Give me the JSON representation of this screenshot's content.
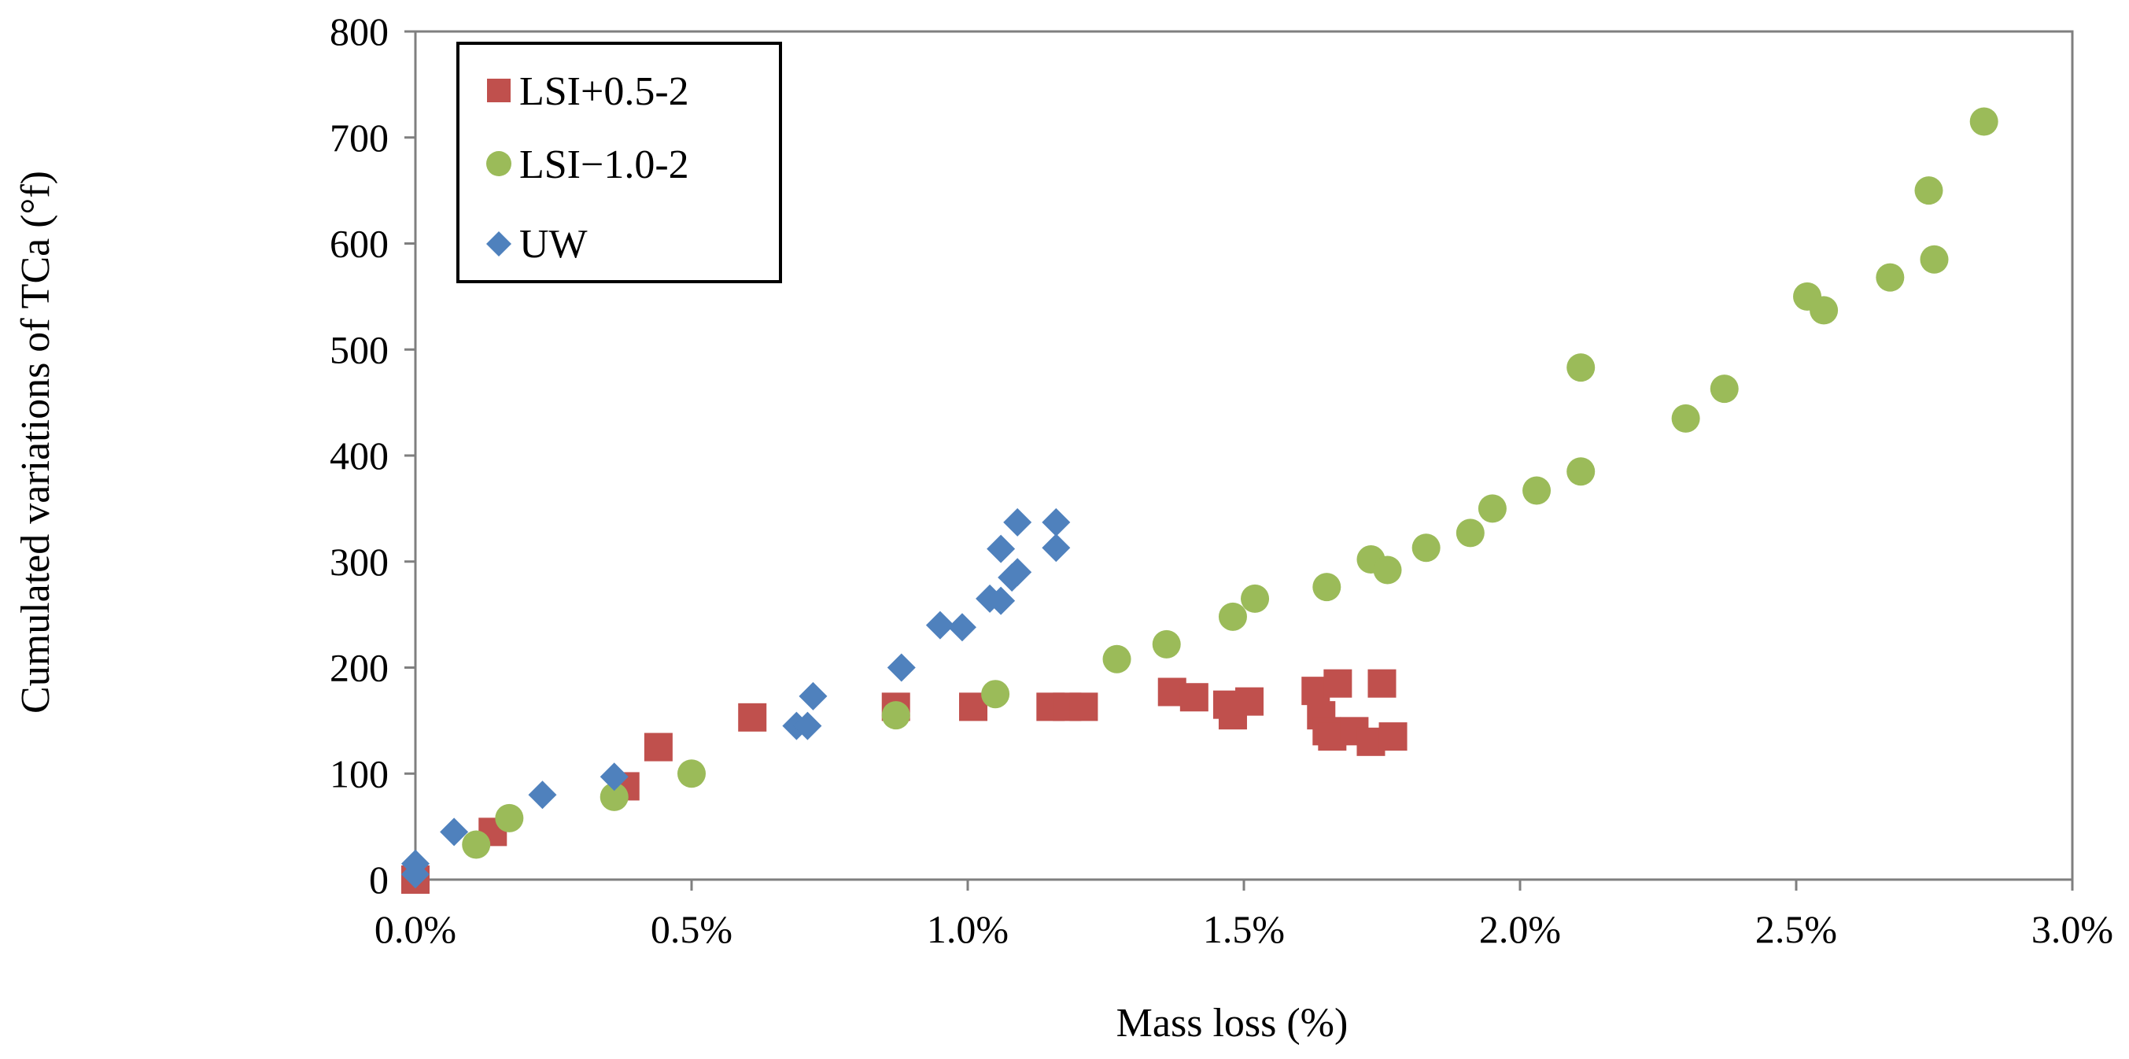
{
  "chart_data": {
    "type": "scatter",
    "title": "",
    "xlabel": "Mass loss (%)",
    "ylabel": "Cumulated  variations  of TCa (°f)",
    "xlim": [
      0.0,
      3.0
    ],
    "ylim": [
      0,
      800
    ],
    "x_ticks": [
      0.0,
      0.5,
      1.0,
      1.5,
      2.0,
      2.5,
      3.0
    ],
    "x_tick_labels": [
      "0.0%",
      "0.5%",
      "1.0%",
      "1.5%",
      "2.0%",
      "2.5%",
      "3.0%"
    ],
    "y_ticks": [
      0,
      100,
      200,
      300,
      400,
      500,
      600,
      700,
      800
    ],
    "y_tick_labels": [
      "0",
      "100",
      "200",
      "300",
      "400",
      "500",
      "600",
      "700",
      "800"
    ],
    "grid": false,
    "legend_position": "top-left",
    "series": [
      {
        "name": "LSI+0.5-2",
        "marker": "square",
        "color": "#C0504D",
        "points": [
          [
            0.0,
            0
          ],
          [
            0.14,
            45
          ],
          [
            0.38,
            88
          ],
          [
            0.44,
            125
          ],
          [
            0.61,
            153
          ],
          [
            0.87,
            163
          ],
          [
            1.01,
            163
          ],
          [
            1.15,
            163
          ],
          [
            1.18,
            163
          ],
          [
            1.21,
            163
          ],
          [
            1.37,
            177
          ],
          [
            1.41,
            172
          ],
          [
            1.47,
            165
          ],
          [
            1.48,
            155
          ],
          [
            1.51,
            168
          ],
          [
            1.63,
            178
          ],
          [
            1.64,
            155
          ],
          [
            1.65,
            140
          ],
          [
            1.66,
            135
          ],
          [
            1.67,
            185
          ],
          [
            1.7,
            140
          ],
          [
            1.73,
            130
          ],
          [
            1.75,
            185
          ],
          [
            1.77,
            135
          ]
        ]
      },
      {
        "name": "LSI−1.0-2",
        "marker": "circle",
        "color": "#9BBB59",
        "points": [
          [
            0.11,
            33
          ],
          [
            0.17,
            58
          ],
          [
            0.36,
            78
          ],
          [
            0.5,
            100
          ],
          [
            0.87,
            155
          ],
          [
            1.05,
            175
          ],
          [
            1.27,
            208
          ],
          [
            1.36,
            222
          ],
          [
            1.48,
            248
          ],
          [
            1.52,
            265
          ],
          [
            1.65,
            276
          ],
          [
            1.73,
            302
          ],
          [
            1.76,
            292
          ],
          [
            1.83,
            313
          ],
          [
            1.91,
            327
          ],
          [
            1.95,
            350
          ],
          [
            2.03,
            367
          ],
          [
            2.11,
            385
          ],
          [
            2.11,
            483
          ],
          [
            2.3,
            435
          ],
          [
            2.37,
            463
          ],
          [
            2.52,
            550
          ],
          [
            2.55,
            537
          ],
          [
            2.67,
            568
          ],
          [
            2.74,
            650
          ],
          [
            2.75,
            585
          ],
          [
            2.84,
            715
          ]
        ]
      },
      {
        "name": "UW",
        "marker": "diamond",
        "color": "#4F81BD",
        "points": [
          [
            0.0,
            5
          ],
          [
            0.0,
            15
          ],
          [
            0.07,
            45
          ],
          [
            0.23,
            80
          ],
          [
            0.36,
            97
          ],
          [
            0.69,
            145
          ],
          [
            0.71,
            145
          ],
          [
            0.72,
            173
          ],
          [
            0.88,
            200
          ],
          [
            0.95,
            240
          ],
          [
            0.99,
            238
          ],
          [
            1.04,
            265
          ],
          [
            1.06,
            263
          ],
          [
            1.06,
            312
          ],
          [
            1.08,
            285
          ],
          [
            1.09,
            290
          ],
          [
            1.09,
            337
          ],
          [
            1.16,
            313
          ],
          [
            1.16,
            337
          ]
        ]
      }
    ]
  }
}
